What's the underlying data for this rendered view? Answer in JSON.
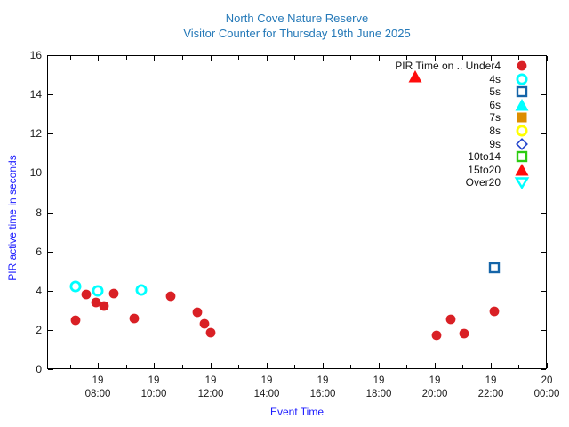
{
  "chart_data": {
    "type": "scatter",
    "title": "North Cove Nature Reserve",
    "subtitle": "Visitor Counter for Thursday 19th June 2025",
    "title_color": "#2579b8",
    "xlabel": "Event Time",
    "ylabel": "PIR active time in seconds",
    "axis_label_color": "#1a1aff",
    "grid": false,
    "legend_position": "top-right-inside",
    "x_axis": {
      "type": "time",
      "range_hours": [
        6.18,
        24
      ],
      "major_ticks": [
        {
          "hour": 8,
          "day": "19",
          "time": "08:00"
        },
        {
          "hour": 10,
          "day": "19",
          "time": "10:00"
        },
        {
          "hour": 12,
          "day": "19",
          "time": "12:00"
        },
        {
          "hour": 14,
          "day": "19",
          "time": "14:00"
        },
        {
          "hour": 16,
          "day": "19",
          "time": "16:00"
        },
        {
          "hour": 18,
          "day": "19",
          "time": "18:00"
        },
        {
          "hour": 20,
          "day": "19",
          "time": "20:00"
        },
        {
          "hour": 22,
          "day": "19",
          "time": "22:00"
        },
        {
          "hour": 24,
          "day": "20",
          "time": "00:00"
        }
      ],
      "minor_tick_hours": [
        7,
        9,
        11,
        13,
        15,
        17,
        19,
        21,
        23
      ]
    },
    "y_axis": {
      "range": [
        0,
        16
      ],
      "ticks": [
        0,
        2,
        4,
        6,
        8,
        10,
        12,
        14,
        16
      ]
    },
    "series": [
      {
        "name": "Under4",
        "legend_label": "PIR Time on .. Under4",
        "marker": "circle-filled",
        "color": "#d92025",
        "points": [
          {
            "time": "07:12",
            "seconds": 2.5
          },
          {
            "time": "07:35",
            "seconds": 3.8
          },
          {
            "time": "07:55",
            "seconds": 3.4
          },
          {
            "time": "08:13",
            "seconds": 3.2
          },
          {
            "time": "08:34",
            "seconds": 3.85
          },
          {
            "time": "09:17",
            "seconds": 2.6
          },
          {
            "time": "10:35",
            "seconds": 3.7
          },
          {
            "time": "11:33",
            "seconds": 2.9
          },
          {
            "time": "11:48",
            "seconds": 2.3
          },
          {
            "time": "12:01",
            "seconds": 1.85
          },
          {
            "time": "20:04",
            "seconds": 1.7
          },
          {
            "time": "20:34",
            "seconds": 2.55
          },
          {
            "time": "21:04",
            "seconds": 1.8
          },
          {
            "time": "22:07",
            "seconds": 2.95
          }
        ]
      },
      {
        "name": "4s",
        "legend_label": "4s",
        "marker": "circle-open",
        "color": "#00ffff",
        "points": [
          {
            "time": "07:12",
            "seconds": 4.2
          },
          {
            "time": "08:00",
            "seconds": 4.0
          },
          {
            "time": "09:32",
            "seconds": 4.05
          }
        ]
      },
      {
        "name": "5s",
        "legend_label": "5s",
        "marker": "square-open",
        "color": "#1565a8",
        "points": [
          {
            "time": "22:07",
            "seconds": 5.15
          }
        ]
      },
      {
        "name": "6s",
        "legend_label": "6s",
        "marker": "triangle-filled",
        "color": "#00ffff",
        "points": []
      },
      {
        "name": "7s",
        "legend_label": "7s",
        "marker": "square-filled",
        "color": "#dd8e00",
        "points": []
      },
      {
        "name": "8s",
        "legend_label": "8s",
        "marker": "circle-open",
        "color": "#ffff00",
        "points": []
      },
      {
        "name": "9s",
        "legend_label": "9s",
        "marker": "diamond-open",
        "color": "#2244cc",
        "points": []
      },
      {
        "name": "10to14",
        "legend_label": "10to14",
        "marker": "square-open",
        "color": "#2ccc11",
        "points": []
      },
      {
        "name": "15to20",
        "legend_label": "15to20",
        "marker": "triangle-filled",
        "color": "#ff0c0c",
        "points": [
          {
            "time": "19:19",
            "seconds": 14.9
          }
        ]
      },
      {
        "name": "Over20",
        "legend_label": "Over20",
        "marker": "triangle-down-open",
        "color": "#00ffff",
        "points": []
      }
    ]
  }
}
